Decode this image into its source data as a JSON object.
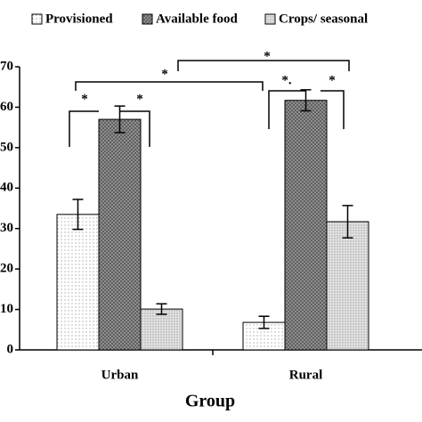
{
  "chart_data": {
    "type": "bar",
    "x_label": "Group",
    "categories": [
      "Urban",
      "Rural"
    ],
    "series": [
      {
        "name": "Provisioned",
        "color": "#ffffff",
        "values": [
          33.5,
          6.8
        ],
        "errors": [
          3.7,
          1.5
        ]
      },
      {
        "name": "Available food",
        "color": "#8c8c8c",
        "values": [
          57.0,
          61.7
        ],
        "errors": [
          3.3,
          2.6
        ]
      },
      {
        "name": "Crops/ seasonal",
        "color": "#d4d4d4",
        "values": [
          10.1,
          31.7
        ],
        "errors": [
          1.3,
          4.0
        ]
      }
    ],
    "ylim": [
      0,
      70
    ],
    "yticks": [
      0,
      10,
      20,
      30,
      40,
      50,
      60,
      70
    ],
    "legend": "top",
    "annotations": [
      "*",
      "*",
      "*",
      "*",
      "*.",
      "*"
    ]
  }
}
